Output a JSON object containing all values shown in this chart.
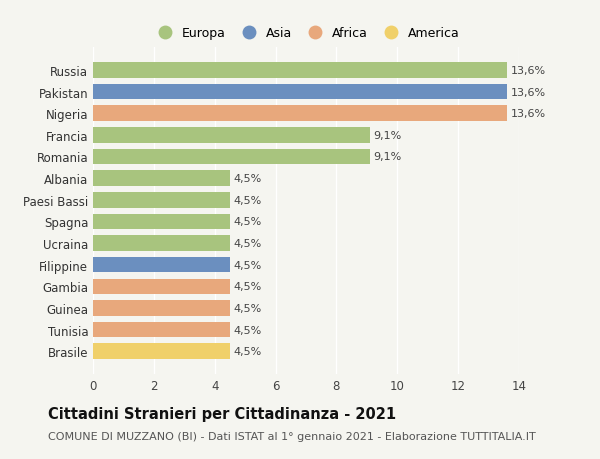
{
  "countries": [
    "Russia",
    "Pakistan",
    "Nigeria",
    "Francia",
    "Romania",
    "Albania",
    "Paesi Bassi",
    "Spagna",
    "Ucraina",
    "Filippine",
    "Gambia",
    "Guinea",
    "Tunisia",
    "Brasile"
  ],
  "values": [
    13.6,
    13.6,
    13.6,
    9.1,
    9.1,
    4.5,
    4.5,
    4.5,
    4.5,
    4.5,
    4.5,
    4.5,
    4.5,
    4.5
  ],
  "labels": [
    "13,6%",
    "13,6%",
    "13,6%",
    "9,1%",
    "9,1%",
    "4,5%",
    "4,5%",
    "4,5%",
    "4,5%",
    "4,5%",
    "4,5%",
    "4,5%",
    "4,5%",
    "4,5%"
  ],
  "colors": [
    "#a8c47e",
    "#6b8fbf",
    "#e8a87c",
    "#a8c47e",
    "#a8c47e",
    "#a8c47e",
    "#a8c47e",
    "#a8c47e",
    "#a8c47e",
    "#6b8fbf",
    "#e8a87c",
    "#e8a87c",
    "#e8a87c",
    "#f0d06a"
  ],
  "legend_labels": [
    "Europa",
    "Asia",
    "Africa",
    "America"
  ],
  "legend_colors": [
    "#a8c47e",
    "#6b8fbf",
    "#e8a87c",
    "#f0d06a"
  ],
  "xlim": [
    0,
    14
  ],
  "xticks": [
    0,
    2,
    4,
    6,
    8,
    10,
    12,
    14
  ],
  "title": "Cittadini Stranieri per Cittadinanza - 2021",
  "subtitle": "COMUNE DI MUZZANO (BI) - Dati ISTAT al 1° gennaio 2021 - Elaborazione TUTTITALIA.IT",
  "bg_color": "#f5f5f0",
  "bar_height": 0.72,
  "label_fontsize": 8,
  "ytick_fontsize": 8.5,
  "xtick_fontsize": 8.5,
  "title_fontsize": 10.5,
  "subtitle_fontsize": 8
}
